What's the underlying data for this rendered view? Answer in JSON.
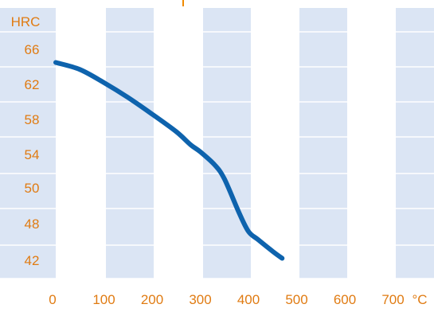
{
  "chart_data": {
    "type": "line",
    "title": "",
    "xlabel": "",
    "ylabel": "",
    "y_unit_label": "HRC",
    "x_unit_label": "°C",
    "x_ticks": [
      "0",
      "100",
      "200",
      "300",
      "400",
      "500",
      "600",
      "700"
    ],
    "y_ticks": [
      "66",
      "62",
      "58",
      "54",
      "50",
      "48",
      "42"
    ],
    "series": [
      {
        "x": [
          0,
          50,
          100,
          150,
          200,
          250,
          280,
          300,
          330,
          350,
          380,
          400,
          420,
          450,
          470
        ],
        "y": [
          64.5,
          63.7,
          62.2,
          60.5,
          58.6,
          56.6,
          55.1,
          54.3,
          52.8,
          51.2,
          48.7,
          46.8,
          45.4,
          43.4,
          42.2
        ]
      }
    ],
    "xlim": [
      0,
      800
    ],
    "colors": {
      "line": "#0e63ad",
      "tick_text": "#e07b12",
      "band": "#dbe5f4",
      "accent_top": "#f08a00"
    }
  }
}
